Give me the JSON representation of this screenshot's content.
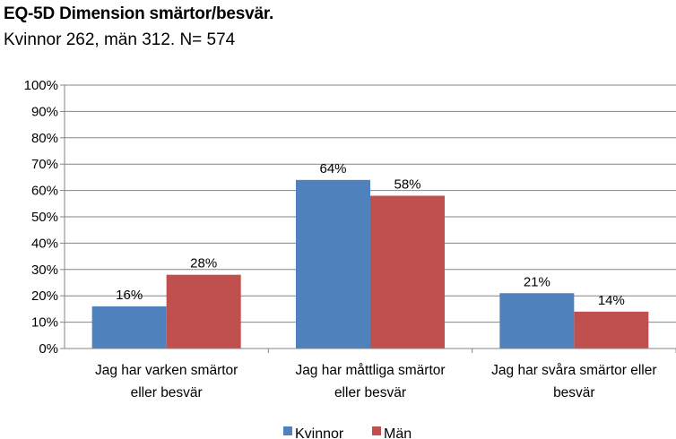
{
  "chart_data": {
    "type": "bar",
    "title": "EQ-5D Dimension smärtor/besvär.",
    "subtitle": "Kvinnor 262, män 312. N= 574",
    "categories": [
      [
        "Jag har varken smärtor",
        "eller besvär"
      ],
      [
        "Jag har måttliga smärtor",
        "eller besvär"
      ],
      [
        "Jag har svåra smärtor eller",
        "besvär"
      ]
    ],
    "series": [
      {
        "name": "Kvinnor",
        "color": "#4F81BD",
        "values": [
          16,
          64,
          21
        ]
      },
      {
        "name": "Män",
        "color": "#C0504D",
        "values": [
          28,
          58,
          14
        ]
      }
    ],
    "ylim": [
      0,
      100
    ],
    "yticks": [
      0,
      10,
      20,
      30,
      40,
      50,
      60,
      70,
      80,
      90,
      100
    ],
    "ytick_suffix": "%",
    "data_labels": true,
    "grid": true,
    "legend_position": "bottom"
  }
}
